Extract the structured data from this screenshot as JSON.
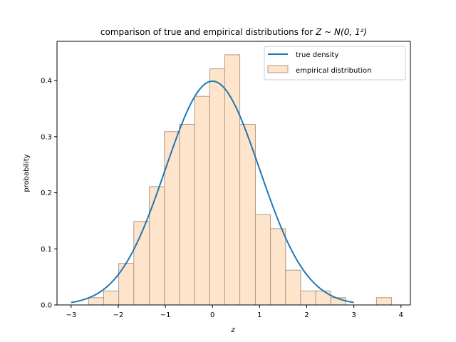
{
  "chart_data": {
    "type": "bar",
    "title_text": "comparison of true and empirical distributions for ",
    "title_math": "Z ~ N(0, 1²)",
    "xlabel": "z",
    "ylabel": "probability",
    "xlim": [
      -3.3,
      4.2
    ],
    "ylim": [
      0,
      0.47
    ],
    "xticks": [
      -3,
      -2,
      -1,
      0,
      1,
      2,
      3,
      4
    ],
    "yticks": [
      0.0,
      0.1,
      0.2,
      0.3,
      0.4
    ],
    "ytick_labels": [
      "0.0",
      "0.1",
      "0.2",
      "0.3",
      "0.4"
    ],
    "legend_position": "top-right",
    "grid": false,
    "series": [
      {
        "name": "true density",
        "kind": "line",
        "color": "#1f77b4",
        "x_range": [
          -3,
          3
        ],
        "distribution": "normal(0,1) pdf"
      },
      {
        "name": "empirical distribution",
        "kind": "histogram",
        "color": "#ffe4cc",
        "edge_color": "#b09a8a",
        "bins": [
          {
            "x0": -2.63,
            "x1": -2.31,
            "value": 0.013
          },
          {
            "x0": -2.31,
            "x1": -1.99,
            "value": 0.025
          },
          {
            "x0": -1.99,
            "x1": -1.67,
            "value": 0.074
          },
          {
            "x0": -1.67,
            "x1": -1.34,
            "value": 0.149
          },
          {
            "x0": -1.34,
            "x1": -1.02,
            "value": 0.211
          },
          {
            "x0": -1.02,
            "x1": -0.7,
            "value": 0.309
          },
          {
            "x0": -0.7,
            "x1": -0.38,
            "value": 0.322
          },
          {
            "x0": -0.38,
            "x1": -0.06,
            "value": 0.372
          },
          {
            "x0": -0.06,
            "x1": 0.26,
            "value": 0.421
          },
          {
            "x0": 0.26,
            "x1": 0.58,
            "value": 0.446
          },
          {
            "x0": 0.58,
            "x1": 0.91,
            "value": 0.322
          },
          {
            "x0": 0.91,
            "x1": 1.23,
            "value": 0.161
          },
          {
            "x0": 1.23,
            "x1": 1.55,
            "value": 0.136
          },
          {
            "x0": 1.55,
            "x1": 1.87,
            "value": 0.062
          },
          {
            "x0": 1.87,
            "x1": 2.19,
            "value": 0.025
          },
          {
            "x0": 2.19,
            "x1": 2.51,
            "value": 0.025
          },
          {
            "x0": 2.51,
            "x1": 2.83,
            "value": 0.013
          },
          {
            "x0": 3.48,
            "x1": 3.8,
            "value": 0.013
          }
        ]
      }
    ]
  }
}
